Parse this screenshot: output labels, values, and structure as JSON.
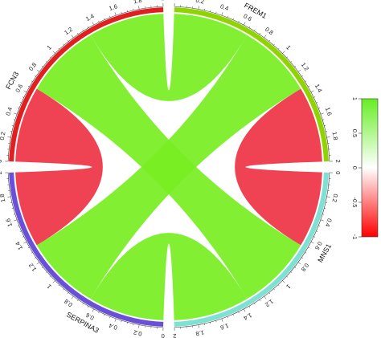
{
  "chart_data": {
    "type": "chord",
    "sectors": [
      {
        "name": "FREM1",
        "color": "#8fd400"
      },
      {
        "name": "MNS1",
        "color": "#7fe0d4"
      },
      {
        "name": "SERPINA3",
        "color": "#6a4fd8"
      },
      {
        "name": "FCN3",
        "color": "#e02020"
      }
    ],
    "axis_max": 2,
    "tick_labels": [
      "0",
      "0.2",
      "0.4",
      "0.6",
      "0.8",
      "1",
      "1.2",
      "1.4",
      "1.6",
      "1.8",
      "2"
    ],
    "links": [
      {
        "from": "FREM1",
        "to": "SERPINA3",
        "color": "#77ee22"
      },
      {
        "from": "FCN3",
        "to": "MNS1",
        "color": "#77ee22"
      },
      {
        "from": "FREM1",
        "to": "FCN3",
        "color": "#77ee22"
      },
      {
        "from": "MNS1",
        "to": "SERPINA3",
        "color": "#77ee22"
      },
      {
        "from": "FCN3",
        "to": "SERPINA3",
        "color": "#ee3344"
      },
      {
        "from": "FREM1",
        "to": "MNS1",
        "color": "#ee3344"
      }
    ],
    "legend": {
      "colors": [
        "#66ee22",
        "#ffffff",
        "#ff0000"
      ],
      "labels": [
        "1",
        "0.5",
        "0",
        "-0.5",
        "-1"
      ]
    }
  }
}
